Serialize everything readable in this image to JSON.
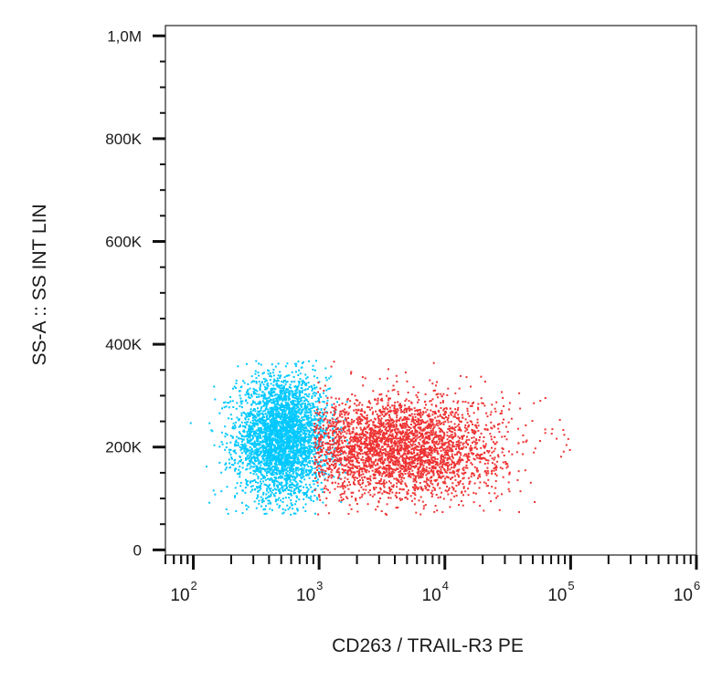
{
  "chart_data": {
    "type": "scatter",
    "title": "",
    "xlabel": "CD263 / TRAIL-R3 PE",
    "ylabel": "SS-A :: SS INT LIN",
    "x_scale": "log",
    "xlim": [
      60,
      1000000
    ],
    "x_ticks": [
      {
        "value": 100,
        "base": "10",
        "exp": "2"
      },
      {
        "value": 1000,
        "base": "10",
        "exp": "3"
      },
      {
        "value": 10000,
        "base": "10",
        "exp": "4"
      },
      {
        "value": 100000,
        "base": "10",
        "exp": "5"
      },
      {
        "value": 1000000,
        "base": "10",
        "exp": "6"
      }
    ],
    "ylim": [
      -10000,
      1020000
    ],
    "y_ticks": [
      {
        "value": 0,
        "label": "0"
      },
      {
        "value": 200000,
        "label": "200K"
      },
      {
        "value": 400000,
        "label": "400K"
      },
      {
        "value": 600000,
        "label": "600K"
      },
      {
        "value": 800000,
        "label": "800K"
      },
      {
        "value": 1000000,
        "label": "1,0M"
      }
    ],
    "grid": false,
    "legend": "none",
    "series": [
      {
        "color": "#00c8ff",
        "population": "negative",
        "center": {
          "x": 500,
          "y": 220000
        },
        "spread": {
          "log10_x_sd": 0.18,
          "y_sd": 60000
        },
        "range": {
          "x": [
            70,
            1700
          ],
          "y": [
            70000,
            370000
          ]
        },
        "points_approx": 3500
      },
      {
        "color": "#ee3333",
        "population": "positive",
        "center": {
          "x": 4000,
          "y": 200000
        },
        "spread": {
          "log10_x_sd": 0.42,
          "y_sd": 50000
        },
        "range": {
          "x": [
            900,
            280000
          ],
          "y": [
            70000,
            370000
          ]
        },
        "points_approx": 3200
      }
    ]
  }
}
